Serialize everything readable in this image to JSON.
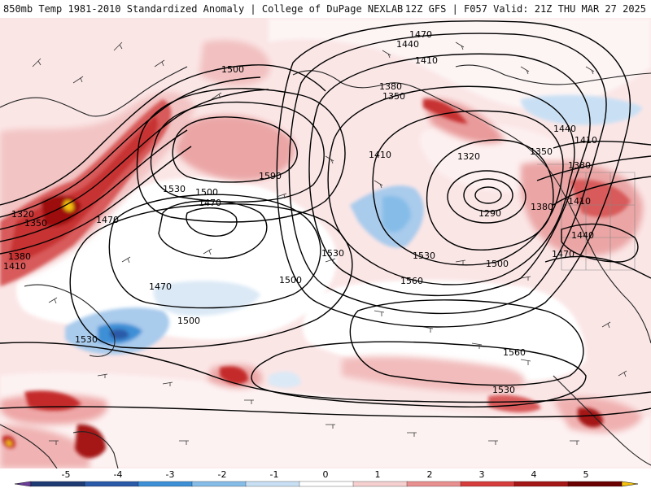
{
  "header": {
    "title_left": "850mb Temp 1981-2010 Standardized Anomaly | College of DuPage NEXLAB",
    "title_right": "12Z GFS | F057 Valid: 21Z THU MAR 27 2025"
  },
  "map": {
    "contour_labels": [
      "1500",
      "1590",
      "1530",
      "1500",
      "1470",
      "1470",
      "1320",
      "1350",
      "1380",
      "1410",
      "1470",
      "1500",
      "1530",
      "1500",
      "1530",
      "1470",
      "1440",
      "1410",
      "1380",
      "1350",
      "1410",
      "1320",
      "1290",
      "1380",
      "1350",
      "1440",
      "1410",
      "1380",
      "1410",
      "1440",
      "1470",
      "1530",
      "1500",
      "1560",
      "1560",
      "1530"
    ]
  },
  "legend": {
    "ticks": [
      "-5",
      "-4",
      "-3",
      "-2",
      "-1",
      "0",
      "1",
      "2",
      "3",
      "4",
      "5"
    ],
    "colors": [
      "#6a3d9a",
      "#1f3b73",
      "#2b5aa8",
      "#3d8fd6",
      "#86bde8",
      "#c9e0f4",
      "#ffffff",
      "#f6cfcf",
      "#e88f8f",
      "#d63c3c",
      "#a51616",
      "#6b0000",
      "#f4c20d"
    ]
  }
}
